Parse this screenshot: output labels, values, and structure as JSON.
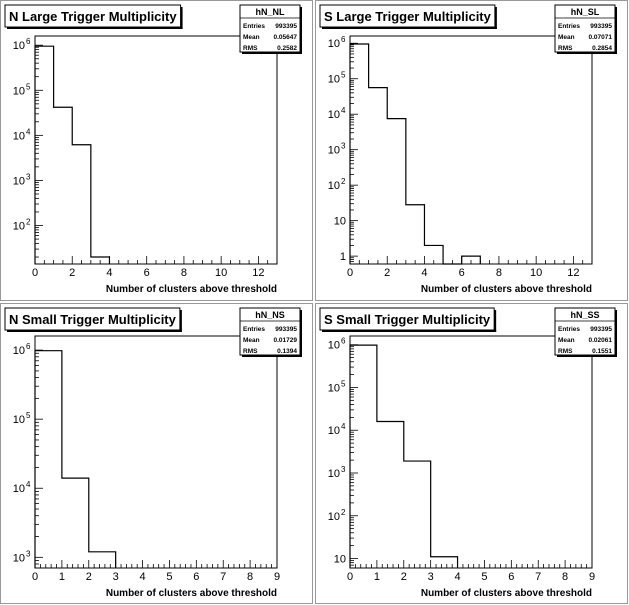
{
  "chart_data": [
    {
      "type": "histogram",
      "title": "N Large Trigger Multiplicity",
      "xlabel": "Number of clusters above threshold",
      "ylabel": "",
      "xlim": [
        0,
        13
      ],
      "xticks": [
        0,
        2,
        4,
        6,
        8,
        10,
        12
      ],
      "ylim": [
        14,
        1600000
      ],
      "yscale": "log",
      "ytick_decades": [
        2,
        3,
        4,
        5,
        6
      ],
      "bins": [
        {
          "x0": 0,
          "x1": 1,
          "y": 950000
        },
        {
          "x0": 1,
          "x1": 2,
          "y": 42000
        },
        {
          "x0": 2,
          "x1": 3,
          "y": 6200
        },
        {
          "x0": 3,
          "x1": 4,
          "y": 20
        }
      ],
      "stats": {
        "name": "hN_NL",
        "rows": [
          [
            "Entries",
            "993395"
          ],
          [
            "Mean",
            "0.05647"
          ],
          [
            "RMS",
            "0.2582"
          ]
        ]
      }
    },
    {
      "type": "histogram",
      "title": "S Large Trigger Multiplicity",
      "xlabel": "Number of clusters above threshold",
      "ylabel": "",
      "xlim": [
        0,
        13
      ],
      "xticks": [
        0,
        2,
        4,
        6,
        8,
        10,
        12
      ],
      "ylim": [
        0.6,
        1600000
      ],
      "yscale": "log",
      "ytick_decades": [
        0,
        1,
        2,
        3,
        4,
        5,
        6
      ],
      "ytick_labels": {
        "0": "1",
        "1": "10"
      },
      "bins": [
        {
          "x0": 0,
          "x1": 1,
          "y": 950000
        },
        {
          "x0": 1,
          "x1": 2,
          "y": 56000
        },
        {
          "x0": 2,
          "x1": 3,
          "y": 7500
        },
        {
          "x0": 3,
          "x1": 4,
          "y": 28
        },
        {
          "x0": 4,
          "x1": 5,
          "y": 2
        },
        {
          "x0": 5,
          "x1": 6,
          "y": 0
        },
        {
          "x0": 6,
          "x1": 7,
          "y": 1
        }
      ],
      "stats": {
        "name": "hN_SL",
        "rows": [
          [
            "Entries",
            "993395"
          ],
          [
            "Mean",
            "0.07071"
          ],
          [
            "RMS",
            "0.2854"
          ]
        ]
      }
    },
    {
      "type": "histogram",
      "title": "N Small Trigger Multiplicity",
      "xlabel": "Number of clusters above threshold",
      "ylabel": "",
      "xlim": [
        0,
        9
      ],
      "xticks": [
        0,
        1,
        2,
        3,
        4,
        5,
        6,
        7,
        8,
        9
      ],
      "ylim": [
        700,
        1600000
      ],
      "yscale": "log",
      "ytick_decades": [
        3,
        4,
        5,
        6
      ],
      "bins": [
        {
          "x0": 0,
          "x1": 1,
          "y": 980000
        },
        {
          "x0": 1,
          "x1": 2,
          "y": 14000
        },
        {
          "x0": 2,
          "x1": 3,
          "y": 1200
        }
      ],
      "stats": {
        "name": "hN_NS",
        "rows": [
          [
            "Entries",
            "993395"
          ],
          [
            "Mean",
            "0.01729"
          ],
          [
            "RMS",
            "0.1394"
          ]
        ]
      }
    },
    {
      "type": "histogram",
      "title": "S Small Trigger Multiplicity",
      "xlabel": "Number of clusters above threshold",
      "ylabel": "",
      "xlim": [
        0,
        9
      ],
      "xticks": [
        0,
        1,
        2,
        3,
        4,
        5,
        6,
        7,
        8,
        9
      ],
      "ylim": [
        6,
        1600000
      ],
      "yscale": "log",
      "ytick_decades": [
        1,
        2,
        3,
        4,
        5,
        6
      ],
      "ytick_labels": {
        "1": "10"
      },
      "bins": [
        {
          "x0": 0,
          "x1": 1,
          "y": 980000
        },
        {
          "x0": 1,
          "x1": 2,
          "y": 16000
        },
        {
          "x0": 2,
          "x1": 3,
          "y": 1900
        },
        {
          "x0": 3,
          "x1": 4,
          "y": 11
        }
      ],
      "stats": {
        "name": "hN_SS",
        "rows": [
          [
            "Entries",
            "993395"
          ],
          [
            "Mean",
            "0.02061"
          ],
          [
            "RMS",
            "0.1551"
          ]
        ]
      }
    }
  ]
}
